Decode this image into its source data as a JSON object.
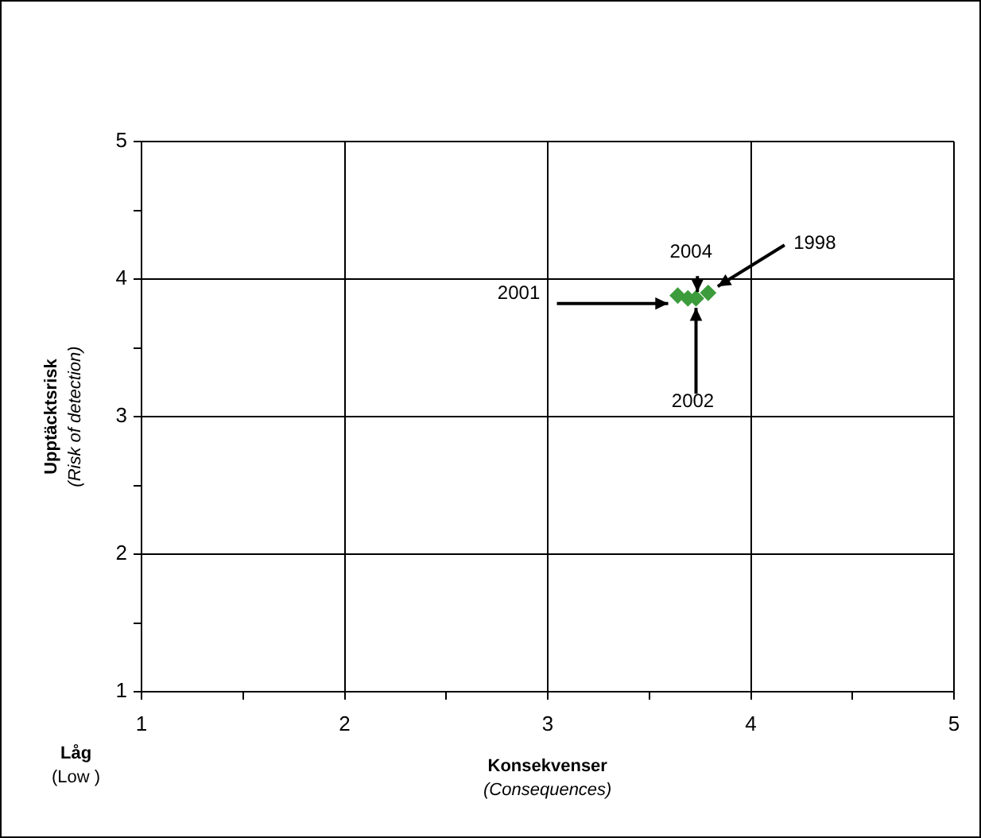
{
  "chart_data": {
    "type": "scatter",
    "xlabel": "Konsekvenser\n(Consequences)",
    "ylabel": "Upptäcktsrisk\n(Risk of detection)",
    "x": [
      3.64,
      3.69,
      3.73,
      3.79
    ],
    "series": [
      {
        "color": "#3c9c3c",
        "values": [
          3.88,
          3.86,
          3.86,
          3.9
        ]
      }
    ],
    "xlim": [
      1,
      5
    ],
    "xticks": [
      1,
      {
        "value": 1.5,
        "label": null
      },
      2,
      {
        "value": 2.5,
        "label": null
      },
      3,
      {
        "value": 3.5,
        "label": null
      },
      4,
      {
        "value": 4.5,
        "label": null
      },
      5
    ],
    "ylim": [
      1,
      5
    ],
    "yticks": [
      1,
      {
        "value": 1.5,
        "label": null
      },
      2,
      {
        "value": 2.5,
        "label": null
      },
      3,
      {
        "value": 3.5,
        "label": null
      },
      4,
      {
        "value": 4.5,
        "label": null
      },
      5
    ],
    "grid": true,
    "legend": false,
    "marker": "diamond",
    "annotations": [
      {
        "text": "2001",
        "x": 3.64,
        "y": 3.88
      },
      {
        "text": "2004",
        "x": 3.69,
        "y": 3.86
      },
      {
        "text": "2002",
        "x": 3.73,
        "y": 3.86
      },
      {
        "text": "1998",
        "x": 3.79,
        "y": 3.9
      },
      "Låg\n(Low )"
    ]
  }
}
